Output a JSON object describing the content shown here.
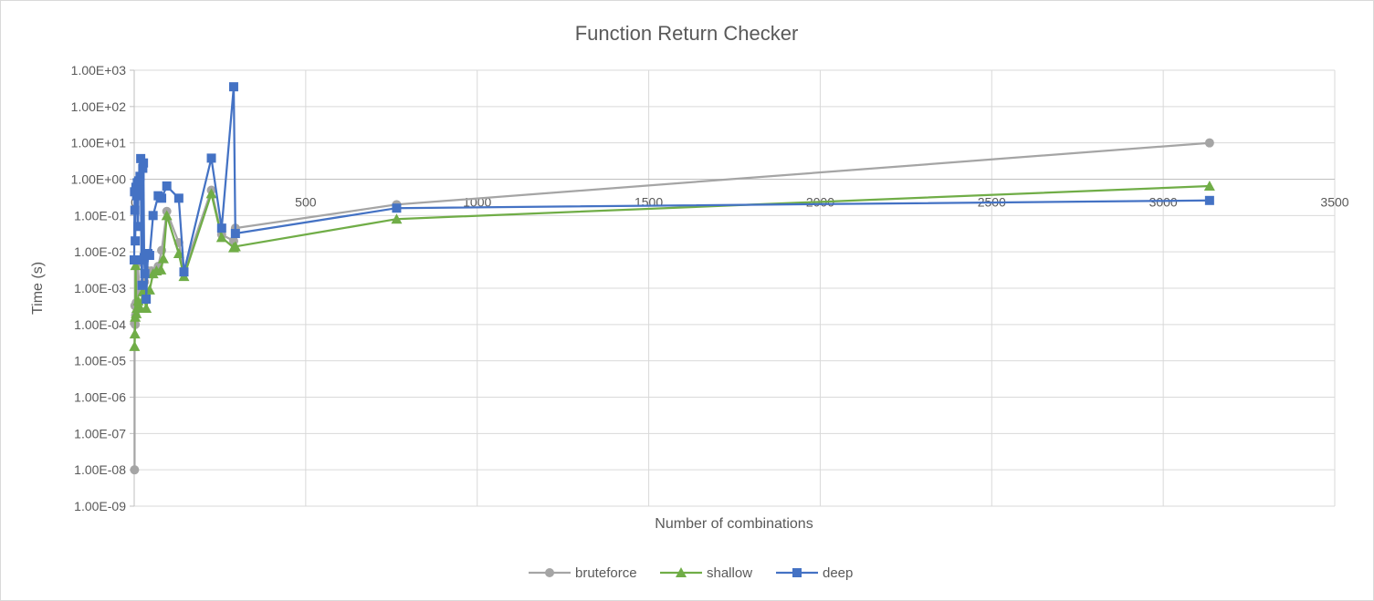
{
  "chart_data": {
    "type": "scatter",
    "title": "Function Return Checker",
    "xlabel": "Number of combinations",
    "ylabel": "Time (s)",
    "xlim": [
      0,
      3500
    ],
    "ylim": [
      1e-09,
      1000
    ],
    "y_scale": "log",
    "grid": true,
    "legend_position": "bottom",
    "x_ticks": [
      "0",
      "500",
      "1000",
      "1500",
      "2000",
      "2500",
      "3000",
      "3500"
    ],
    "y_ticks": [
      "1.00E-09",
      "1.00E-08",
      "1.00E-07",
      "1.00E-06",
      "1.00E-05",
      "1.00E-04",
      "1.00E-03",
      "1.00E-02",
      "1.00E-01",
      "1.00E+00",
      "1.00E+01",
      "1.00E+02",
      "1.00E+03"
    ],
    "series": [
      {
        "name": "bruteforce",
        "color": "#a5a5a5",
        "marker": "circle",
        "points": [
          [
            1,
            1e-08
          ],
          [
            1,
            0.00011
          ],
          [
            2,
            0.00033
          ],
          [
            3,
            0.0001
          ],
          [
            4,
            0.00018
          ],
          [
            6,
            0.0004
          ],
          [
            8,
            0.0003
          ],
          [
            10,
            0.005
          ],
          [
            15,
            0.0012
          ],
          [
            20,
            0.0008
          ],
          [
            30,
            0.0015
          ],
          [
            40,
            0.003
          ],
          [
            50,
            0.003
          ],
          [
            70,
            0.004
          ],
          [
            80,
            0.011
          ],
          [
            95,
            0.13
          ],
          [
            130,
            0.018
          ],
          [
            145,
            0.003
          ],
          [
            225,
            0.5
          ],
          [
            255,
            0.03
          ],
          [
            290,
            0.02
          ],
          [
            295,
            0.045
          ],
          [
            765,
            0.2
          ],
          [
            3135,
            10
          ]
        ]
      },
      {
        "name": "shallow",
        "color": "#70ad47",
        "marker": "triangle",
        "points": [
          [
            1,
            2.5e-05
          ],
          [
            2,
            5.5e-05
          ],
          [
            3,
            0.00016
          ],
          [
            4,
            0.0042
          ],
          [
            6,
            0.0002
          ],
          [
            8,
            0.00028
          ],
          [
            12,
            0.00045
          ],
          [
            18,
            0.00028
          ],
          [
            25,
            0.0008
          ],
          [
            35,
            0.00028
          ],
          [
            45,
            0.0009
          ],
          [
            55,
            0.0025
          ],
          [
            65,
            0.003
          ],
          [
            78,
            0.0032
          ],
          [
            85,
            0.0065
          ],
          [
            95,
            0.1
          ],
          [
            130,
            0.009
          ],
          [
            145,
            0.0021
          ],
          [
            225,
            0.4
          ],
          [
            255,
            0.025
          ],
          [
            290,
            0.013
          ],
          [
            295,
            0.014
          ],
          [
            765,
            0.08
          ],
          [
            3135,
            0.65
          ]
        ]
      },
      {
        "name": "deep",
        "color": "#4472c4",
        "marker": "square",
        "points": [
          [
            0,
            0.006
          ],
          [
            1,
            0.45
          ],
          [
            2,
            0.14
          ],
          [
            3,
            0.02
          ],
          [
            5,
            0.6
          ],
          [
            7,
            0.35
          ],
          [
            9,
            0.8
          ],
          [
            11,
            0.05
          ],
          [
            13,
            0.9
          ],
          [
            15,
            0.5
          ],
          [
            17,
            1.2
          ],
          [
            19,
            3.7
          ],
          [
            21,
            0.006
          ],
          [
            23,
            0.0012
          ],
          [
            25,
            2.0
          ],
          [
            27,
            2.8
          ],
          [
            29,
            0.007
          ],
          [
            31,
            0.0025
          ],
          [
            33,
            0.008
          ],
          [
            35,
            0.0005
          ],
          [
            40,
            0.009
          ],
          [
            45,
            0.008
          ],
          [
            55,
            0.1
          ],
          [
            70,
            0.35
          ],
          [
            80,
            0.3
          ],
          [
            95,
            0.65
          ],
          [
            130,
            0.3
          ],
          [
            145,
            0.0028
          ],
          [
            225,
            3.8
          ],
          [
            255,
            0.045
          ],
          [
            290,
            350
          ],
          [
            295,
            0.032
          ],
          [
            765,
            0.16
          ],
          [
            3135,
            0.26
          ]
        ]
      }
    ]
  }
}
